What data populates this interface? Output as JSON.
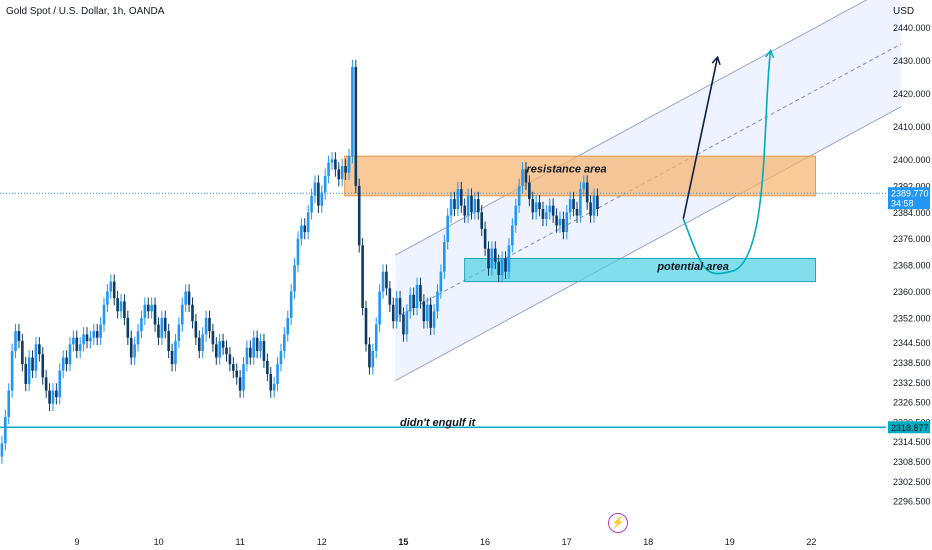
{
  "header": {
    "title": "Gold Spot / U.S. Dollar, 1h, OANDA",
    "currency": "USD"
  },
  "colors": {
    "up": "#2196f3",
    "down": "#0d3b66",
    "channel": "#2962ff",
    "teal": "#00acc1",
    "resistance": "#f6b26b",
    "support": "#4dd0e1",
    "arrow": "#0b1f4a"
  },
  "events_icon": "lightning-icon",
  "chart_data": {
    "type": "candlestick",
    "title": "Gold Spot / U.S. Dollar, 1h, OANDA",
    "ylim": [
      2292,
      2448
    ],
    "y_ticks": [
      2440,
      2430,
      2420,
      2410,
      2400,
      2392,
      2384,
      2376,
      2368,
      2360,
      2352,
      2344.5,
      2338.5,
      2332.5,
      2326.5,
      2320.5,
      2314.5,
      2308.5,
      2302.5,
      2296.5
    ],
    "y_tick_labels": [
      "2440.000",
      "2430.000",
      "2420.000",
      "2410.000",
      "2400.000",
      "2392.000",
      "2384.000",
      "2376.000",
      "2368.000",
      "2360.000",
      "2352.000",
      "2344.500",
      "2338.500",
      "2332.500",
      "2326.500",
      "2320.500",
      "2314.500",
      "2308.500",
      "2302.500",
      "2296.500"
    ],
    "x_ticks": [
      {
        "label": "9",
        "pos": 9,
        "bold": false
      },
      {
        "label": "10",
        "pos": 10,
        "bold": false
      },
      {
        "label": "11",
        "pos": 11,
        "bold": false
      },
      {
        "label": "12",
        "pos": 12,
        "bold": false
      },
      {
        "label": "15",
        "pos": 13,
        "bold": true
      },
      {
        "label": "16",
        "pos": 14,
        "bold": false
      },
      {
        "label": "17",
        "pos": 15,
        "bold": false
      },
      {
        "label": "18",
        "pos": 16,
        "bold": false
      },
      {
        "label": "19",
        "pos": 17,
        "bold": false
      },
      {
        "label": "22",
        "pos": 18,
        "bold": false
      }
    ],
    "x_start": 8.08,
    "x_end": 19.56,
    "candle_step": 0.0417,
    "closes": [
      2314,
      2322,
      2330,
      2342,
      2348,
      2345,
      2338,
      2332,
      2340,
      2336,
      2344,
      2341,
      2334,
      2330,
      2326,
      2330,
      2328,
      2336,
      2340,
      2338,
      2344,
      2346,
      2342,
      2344,
      2347,
      2345,
      2346,
      2348,
      2346,
      2350,
      2356,
      2360,
      2363,
      2358,
      2354,
      2357,
      2352,
      2346,
      2340,
      2344,
      2348,
      2352,
      2356,
      2354,
      2356,
      2350,
      2346,
      2352,
      2348,
      2342,
      2338,
      2345,
      2350,
      2356,
      2360,
      2356,
      2351,
      2346,
      2342,
      2347,
      2352,
      2348,
      2344,
      2340,
      2345,
      2343,
      2341,
      2338,
      2336,
      2334,
      2330,
      2338,
      2343,
      2340,
      2346,
      2342,
      2345,
      2339,
      2335,
      2330,
      2332,
      2338,
      2342,
      2347,
      2352,
      2360,
      2368,
      2376,
      2380,
      2378,
      2384,
      2389,
      2393,
      2386,
      2390,
      2395,
      2399,
      2400,
      2397,
      2394,
      2398,
      2396,
      2401,
      2428,
      2392,
      2374,
      2355,
      2344,
      2337,
      2342,
      2350,
      2360,
      2366,
      2361,
      2356,
      2351,
      2358,
      2353,
      2347,
      2354,
      2359,
      2355,
      2362,
      2357,
      2351,
      2356,
      2349,
      2354,
      2360,
      2366,
      2375,
      2383,
      2388,
      2385,
      2391,
      2386,
      2383,
      2389,
      2384,
      2388,
      2384,
      2379,
      2373,
      2367,
      2373,
      2369,
      2365,
      2370,
      2366,
      2374,
      2380,
      2386,
      2392,
      2397,
      2393,
      2388,
      2384,
      2387,
      2385,
      2382,
      2384,
      2386,
      2383,
      2380,
      2382,
      2378,
      2384,
      2388,
      2385,
      2383,
      2391,
      2393,
      2387,
      2383,
      2389,
      2385
    ],
    "resistance_zone": {
      "y1": 2389,
      "y2": 2401,
      "x1": 12.28,
      "x2": 18.05,
      "label": "resistance area"
    },
    "potential_zone": {
      "y1": 2363,
      "y2": 2370,
      "x1": 13.75,
      "x2": 18.05,
      "label": "potential area"
    },
    "channel": {
      "lower": [
        [
          12.9,
          2333
        ],
        [
          19.1,
          2416
        ]
      ],
      "upper": [
        [
          12.9,
          2371
        ],
        [
          19.1,
          2454
        ]
      ],
      "mid": [
        [
          12.9,
          2352
        ],
        [
          19.1,
          2435
        ]
      ]
    },
    "horizontal_level": {
      "y": 2318.877,
      "label": "2318.877"
    },
    "current_price": {
      "value": "2389.770",
      "countdown": "34:58"
    },
    "price_line": 2389.77,
    "arrow_direct": [
      [
        16.43,
        2382
      ],
      [
        16.85,
        2431
      ]
    ],
    "arrow_curve": {
      "start": [
        16.43,
        2382
      ],
      "bottom": [
        17.0,
        2366
      ],
      "end": [
        17.5,
        2433
      ]
    },
    "annotations": [
      {
        "text": "resistance area",
        "x": 15.0,
        "y": 2396
      },
      {
        "text": "potential area",
        "x": 16.55,
        "y": 2366.5
      },
      {
        "text": "didn't engulf it",
        "x": 13.42,
        "y": 2319.2
      }
    ]
  }
}
